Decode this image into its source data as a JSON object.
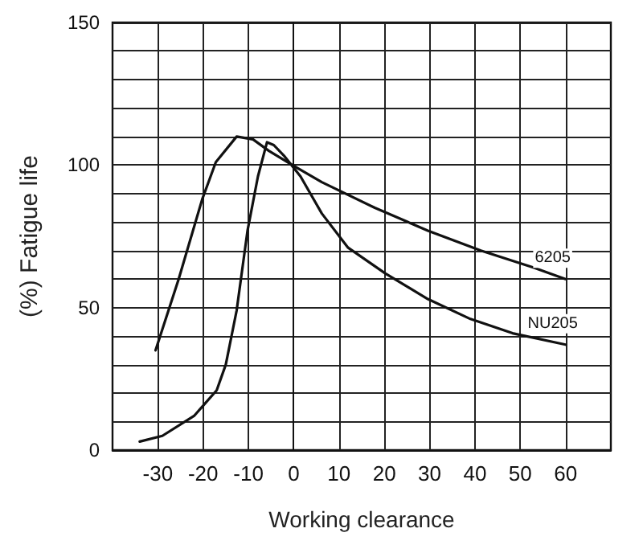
{
  "chart_data": {
    "type": "line",
    "xlabel": "Working clearance",
    "ylabel": "(%) Fatigue life",
    "xlim": [
      -40,
      70
    ],
    "xticks": [
      -30,
      -20,
      -10,
      0,
      10,
      20,
      30,
      40,
      50,
      60
    ],
    "ylim": [
      0,
      150
    ],
    "yticks": [
      0,
      {
        "value": 10,
        "label": null
      },
      {
        "value": 20,
        "label": null
      },
      {
        "value": 30,
        "label": null
      },
      {
        "value": 40,
        "label": null
      },
      50,
      {
        "value": 60,
        "label": null
      },
      {
        "value": 70,
        "label": null
      },
      {
        "value": 80,
        "label": null
      },
      {
        "value": 90,
        "label": null
      },
      100,
      {
        "value": 110,
        "label": null
      },
      {
        "value": 120,
        "label": null
      },
      {
        "value": 130,
        "label": null
      },
      {
        "value": 140,
        "label": null
      },
      150
    ],
    "grid": true,
    "marker": "none",
    "line_style": "solid",
    "series": [
      {
        "name": "6205",
        "color": "#111111",
        "x": [
          -30.5,
          -25.4,
          -20.2,
          -17.2,
          -12.6,
          -9,
          -5.5,
          -0.3,
          6.2,
          17.9,
          29.6,
          41.3,
          53,
          60
        ],
        "values": [
          35,
          60,
          88,
          101,
          110,
          109,
          105,
          100,
          94,
          85,
          77,
          70,
          64,
          60
        ]
      },
      {
        "name": "NU205",
        "color": "#111111",
        "x": [
          -34,
          -29,
          -22,
          -17,
          -15,
          -12.6,
          -10.2,
          -7.9,
          -5.9,
          -4.4,
          -2,
          1.5,
          6.2,
          12,
          20.2,
          29.6,
          39,
          48.3,
          60
        ],
        "values": [
          3,
          5,
          12,
          21,
          30,
          49,
          77,
          96,
          108,
          107,
          103,
          96,
          83,
          71,
          62,
          53,
          46,
          41,
          37
        ]
      }
    ]
  }
}
